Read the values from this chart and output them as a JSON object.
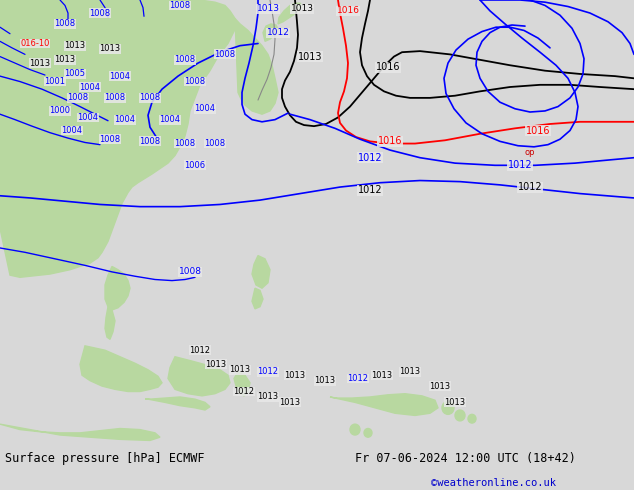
{
  "title_left": "Surface pressure [hPa] ECMWF",
  "title_right": "Fr 07-06-2024 12:00 UTC (18+42)",
  "watermark": "©weatheronline.co.uk",
  "watermark_color": "#0000cc",
  "bg_color": "#e0e0e0",
  "land_color": "#b8d8a0",
  "ocean_color": "#e8e8e8",
  "contour_blue": "#0000ff",
  "contour_red": "#ff0000",
  "contour_black": "#000000",
  "contour_gray": "#888888",
  "footer_fontsize": 8.5
}
